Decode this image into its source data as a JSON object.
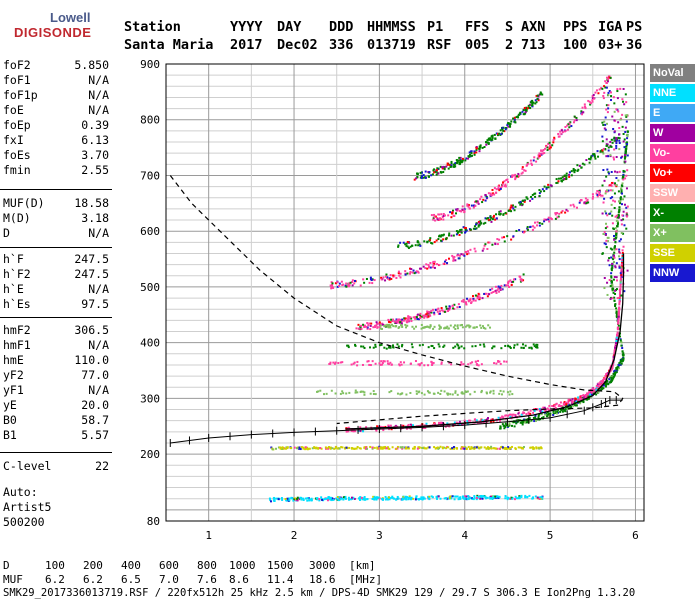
{
  "logo": {
    "line1": "Lowell",
    "line2": "DIGISONDE"
  },
  "header": {
    "labels": [
      "Station",
      "YYYY",
      "DAY",
      "DDD",
      "HHMMSS",
      "P1",
      "FFS",
      "S",
      "AXN",
      "PPS",
      "IGA",
      "PS"
    ],
    "values": [
      "Santa Maria",
      "2017",
      "Dec02",
      "336",
      "013719",
      "RSF",
      "005",
      "2",
      "713",
      "100",
      "03+",
      "36"
    ]
  },
  "params_group1": [
    {
      "name": "foF2",
      "value": "5.850"
    },
    {
      "name": "foF1",
      "value": "N/A"
    },
    {
      "name": "foF1p",
      "value": "N/A"
    },
    {
      "name": "foE",
      "value": "N/A"
    },
    {
      "name": "foEp",
      "value": "0.39"
    },
    {
      "name": "fxI",
      "value": "6.13"
    },
    {
      "name": "foEs",
      "value": "3.70"
    },
    {
      "name": "fmin",
      "value": "2.55"
    }
  ],
  "params_group2": [
    {
      "name": "MUF(D)",
      "value": "18.58"
    },
    {
      "name": "M(D)",
      "value": "3.18"
    },
    {
      "name": "D",
      "value": "N/A"
    }
  ],
  "params_group3": [
    {
      "name": "h`F",
      "value": "247.5"
    },
    {
      "name": "h`F2",
      "value": "247.5"
    },
    {
      "name": "h`E",
      "value": "N/A"
    },
    {
      "name": "h`Es",
      "value": "97.5"
    }
  ],
  "params_group4": [
    {
      "name": "hmF2",
      "value": "306.5"
    },
    {
      "name": "hmF1",
      "value": "N/A"
    },
    {
      "name": "hmE",
      "value": "110.0"
    },
    {
      "name": "yF2",
      "value": "77.0"
    },
    {
      "name": "yF1",
      "value": "N/A"
    },
    {
      "name": "yE",
      "value": "20.0"
    },
    {
      "name": "B0",
      "value": "58.7"
    },
    {
      "name": "B1",
      "value": "5.57"
    }
  ],
  "params_group5": [
    {
      "name": "C-level",
      "value": "22"
    }
  ],
  "auto_block": {
    "line1": "Auto:",
    "line2": "Artist5",
    "line3": "500200"
  },
  "legend": [
    {
      "label": "NoVal",
      "color": "#808080"
    },
    {
      "label": "NNE",
      "color": "#00e0ff"
    },
    {
      "label": "E",
      "color": "#3fa9f5"
    },
    {
      "label": "W",
      "color": "#a000a0"
    },
    {
      "label": "Vo-",
      "color": "#ff3fa0"
    },
    {
      "label": "Vo+",
      "color": "#ff0000"
    },
    {
      "label": "SSW",
      "color": "#ffb0b0"
    },
    {
      "label": "X-",
      "color": "#008000"
    },
    {
      "label": "X+",
      "color": "#80c060"
    },
    {
      "label": "SSE",
      "color": "#d0d000"
    },
    {
      "label": "NNW",
      "color": "#1818d0"
    }
  ],
  "muf_table": {
    "d_label": "D",
    "d_values": [
      "100",
      "200",
      "400",
      "600",
      "800",
      "1000",
      "1500",
      "3000"
    ],
    "d_unit": "[km]",
    "muf_label": "MUF",
    "muf_values": [
      "6.2",
      "6.2",
      "6.5",
      "7.0",
      "7.6",
      "8.6",
      "11.4",
      "18.6"
    ],
    "muf_unit": "[MHz]"
  },
  "footer": "SMK29_2017336013719.RSF / 220fx512h 25 kHz 2.5 km / DPS-4D SMK29 129 / 29.7 S 306.3 E Ion2Png 1.3.20",
  "chart_data": {
    "type": "scatter",
    "title": "",
    "xlabel": "",
    "ylabel": "",
    "xlim": [
      0.5,
      6.1
    ],
    "ylim": [
      80,
      900
    ],
    "x_ticks": [
      1,
      2,
      3,
      4,
      5,
      6
    ],
    "y_ticks": [
      80,
      200,
      300,
      400,
      500,
      600,
      700,
      800,
      900
    ],
    "grid": true,
    "legend_position": "right",
    "series": [
      {
        "name": "X-",
        "color": "#008000",
        "points": [
          [
            4.4,
            250
          ],
          [
            4.8,
            265
          ],
          [
            5.2,
            285
          ],
          [
            5.5,
            310
          ],
          [
            5.7,
            335
          ],
          [
            5.85,
            375
          ],
          [
            5.7,
            520
          ],
          [
            5.8,
            640
          ],
          [
            5.9,
            780
          ]
        ]
      },
      {
        "name": "Vo-",
        "color": "#ff3fa0",
        "points": [
          [
            2.6,
            245
          ],
          [
            3.2,
            250
          ],
          [
            3.8,
            255
          ],
          [
            4.4,
            265
          ],
          [
            5.0,
            285
          ],
          [
            5.4,
            305
          ],
          [
            5.6,
            330
          ],
          [
            5.72,
            360
          ],
          [
            5.78,
            420
          ],
          [
            5.82,
            520
          ],
          [
            5.84,
            560
          ]
        ]
      },
      {
        "name": "SSE",
        "color": "#d0d000",
        "points": [
          [
            1.7,
            212
          ],
          [
            2.5,
            213
          ],
          [
            3.3,
            213
          ],
          [
            4.1,
            213
          ],
          [
            4.9,
            213
          ]
        ]
      },
      {
        "name": "NNE",
        "color": "#00e0ff",
        "points": [
          [
            1.7,
            120
          ],
          [
            2.5,
            122
          ],
          [
            3.3,
            123
          ],
          [
            4.1,
            124
          ],
          [
            4.9,
            124
          ]
        ]
      }
    ],
    "profile_curve": [
      [
        0.55,
        220
      ],
      [
        1.0,
        229
      ],
      [
        1.5,
        235
      ],
      [
        2.0,
        239
      ],
      [
        2.5,
        242
      ],
      [
        3.0,
        245
      ],
      [
        3.5,
        248
      ],
      [
        4.0,
        252
      ],
      [
        4.5,
        258
      ],
      [
        5.0,
        265
      ],
      [
        5.4,
        278
      ],
      [
        5.6,
        290
      ],
      [
        5.7,
        297
      ],
      [
        5.85,
        297
      ]
    ],
    "dashed_curve": [
      [
        0.55,
        700
      ],
      [
        0.8,
        650
      ],
      [
        1.2,
        590
      ],
      [
        1.6,
        530
      ],
      [
        2.0,
        480
      ],
      [
        2.5,
        430
      ],
      [
        3.0,
        400
      ],
      [
        3.5,
        378
      ],
      [
        4.0,
        358
      ],
      [
        4.5,
        340
      ],
      [
        5.0,
        325
      ],
      [
        5.4,
        315
      ],
      [
        5.75,
        312
      ],
      [
        5.85,
        300
      ],
      [
        5.8,
        288
      ],
      [
        5.5,
        283
      ],
      [
        5.0,
        281
      ],
      [
        4.5,
        278
      ],
      [
        3.5,
        268
      ],
      [
        2.5,
        255
      ]
    ],
    "trace_curve": [
      [
        2.6,
        245
      ],
      [
        3.5,
        250
      ],
      [
        4.2,
        258
      ],
      [
        4.8,
        270
      ],
      [
        5.2,
        285
      ],
      [
        5.5,
        305
      ],
      [
        5.65,
        330
      ],
      [
        5.75,
        370
      ],
      [
        5.82,
        420
      ],
      [
        5.85,
        470
      ],
      [
        5.86,
        520
      ],
      [
        5.86,
        560
      ]
    ]
  }
}
